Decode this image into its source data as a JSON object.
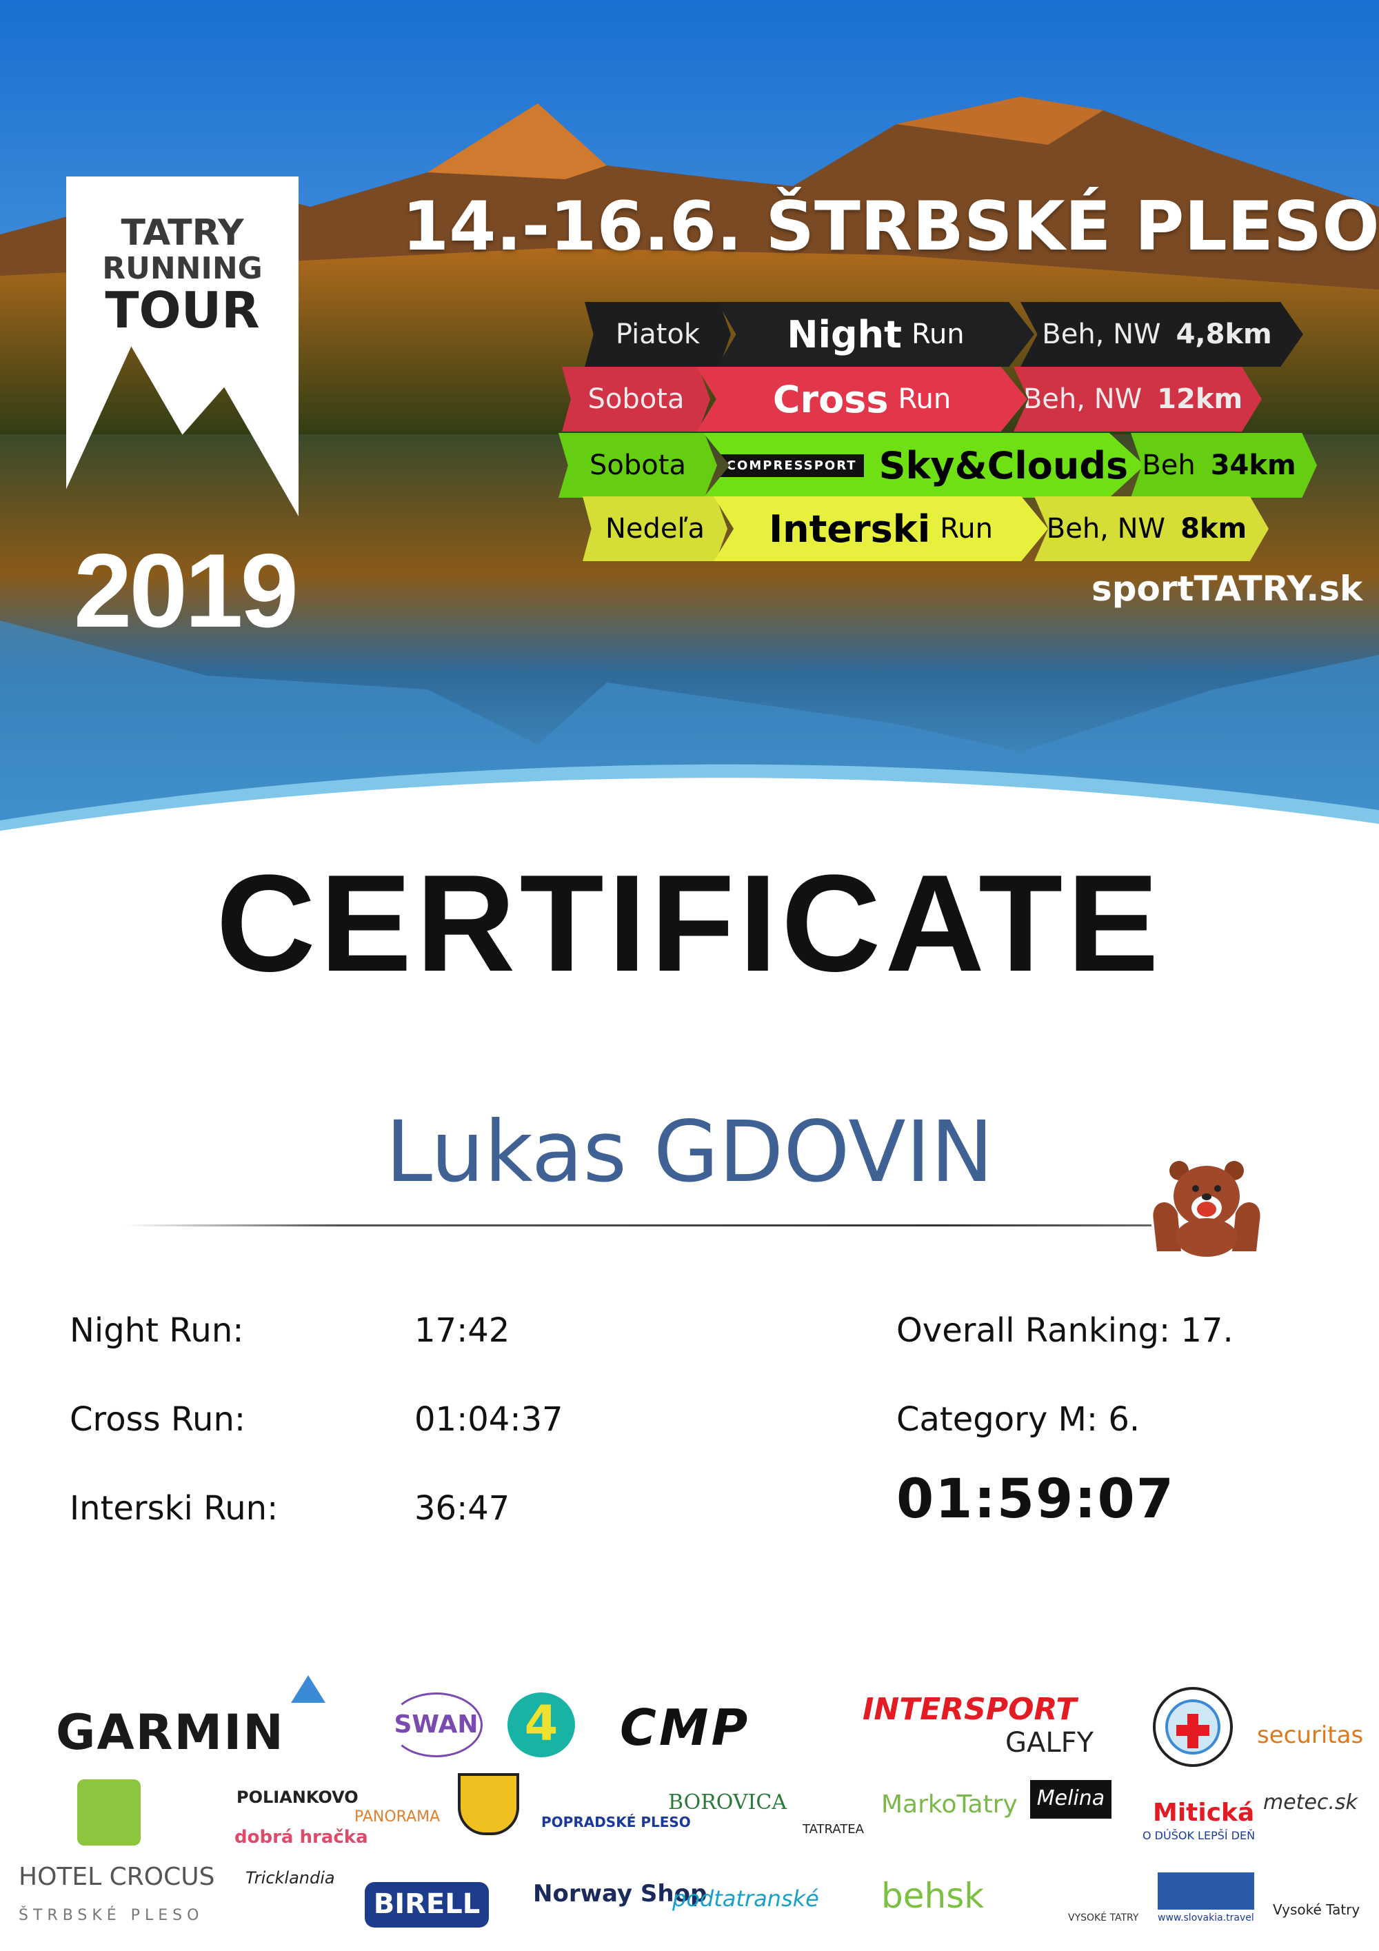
{
  "header": {
    "logo_lines": [
      "TATRY",
      "RUNNING",
      "TOUR"
    ],
    "year": "2019",
    "title": "14.-16.6.  ŠTRBSKÉ PLESO",
    "website": "sportTATRY.sk"
  },
  "races": [
    {
      "day": "Piatok",
      "name_bold": "Night",
      "name_rest": "Run",
      "type": "Beh, NW",
      "distance": "4,8km",
      "color": "#1f2022",
      "text_color": "#ffffff"
    },
    {
      "day": "Sobota",
      "name_bold": "Cross",
      "name_rest": "Run",
      "type": "Beh, NW",
      "distance": "12km",
      "color": "#e2374b",
      "text_color": "#ffffff"
    },
    {
      "day": "Sobota",
      "sponsor": "COMPRESSPORT",
      "name_bold": "Sky&Clouds",
      "name_rest": "",
      "type": "Beh",
      "distance": "34km",
      "color": "#6fe014",
      "text_color": "#000000"
    },
    {
      "day": "Nedeľa",
      "name_bold": "Interski",
      "name_rest": "Run",
      "type": "Beh, NW",
      "distance": "8km",
      "color": "#e7f03c",
      "text_color": "#000000"
    }
  ],
  "certificate": {
    "heading": "CERTIFICATE",
    "participant": "Lukas GDOVIN",
    "name_color": "#3f6193"
  },
  "results": [
    {
      "label": "Night Run:",
      "time": "17:42"
    },
    {
      "label": "Cross Run:",
      "time": "01:04:37"
    },
    {
      "label": "Interski Run:",
      "time": "36:47"
    }
  ],
  "summary": {
    "overall": "Overall Ranking: 17.",
    "category": "Category M: 6.",
    "total_time": "01:59:07"
  },
  "sponsors": {
    "garmin": "GARMIN",
    "swan": "SWAN",
    "fourka": "4",
    "cmp": "CMP",
    "intersport": "INTERSPORT",
    "galfy": "GALFY",
    "securitas": "securitas",
    "polianko": "POLIANKOVO",
    "dobra": "dobrá hračka",
    "panorama": "PANORAMA",
    "popradske": "POPRADSKÉ PLESO",
    "borovica": "BOROVICA",
    "tatratea": "TATRATEA",
    "marko": "MarkoTatry",
    "melina": "Melina",
    "miticka": "Mitická",
    "miticka_sub": "O DÚŠOK LEPŠÍ DEŇ",
    "metec": "metec.sk",
    "crocus": "HOTEL CROCUS",
    "crocus_sub": "ŠTRBSKÉ PLESO",
    "tricklandia": "Tricklandia",
    "birell": "BIRELL",
    "norway": "Norway Shop",
    "podtatranske": "podtatranské",
    "behsk": "behsk",
    "vt": "VYSOKÉ TATRY",
    "slovakia": "www.slovakia.travel",
    "vt_region": "Vysoké Tatry"
  }
}
